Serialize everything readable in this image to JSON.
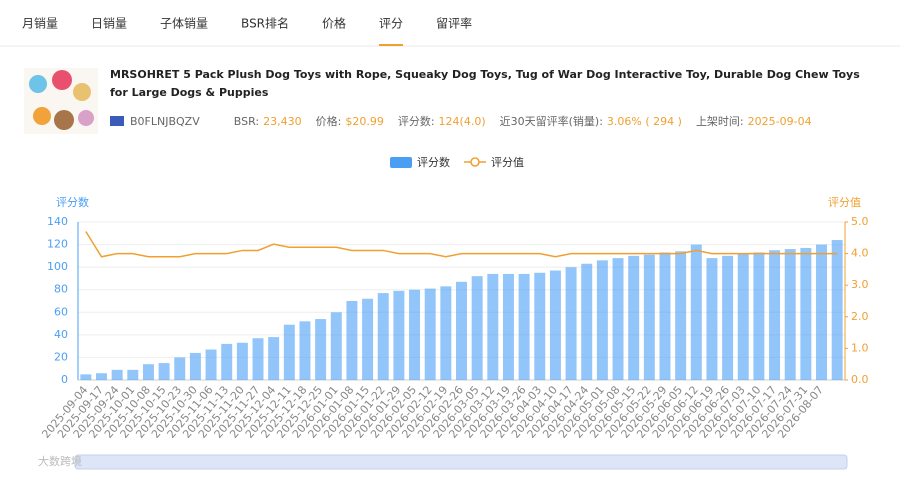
{
  "tabs": [
    "月销量",
    "日销量",
    "子体销量",
    "BSR排名",
    "价格",
    "评分",
    "留评率"
  ],
  "active_tab": 5,
  "product": {
    "title": "MRSOHRET 5 Pack Plush Dog Toys with Rope, Squeaky Dog Toys, Tug of War Dog Interactive Toy, Durable Dog Chew Toys for Large Dogs & Puppies",
    "asin": "B0FLNJBQZV",
    "stats": [
      {
        "label": "BSR:",
        "value": "23,430"
      },
      {
        "label": "价格:",
        "value": "$20.99"
      },
      {
        "label": "评分数:",
        "value": "124(4.0)"
      },
      {
        "label": "近30天留评率(销量):",
        "value": "3.06% ( 294 )"
      },
      {
        "label": "上架时间:",
        "value": "2025-09-04"
      }
    ]
  },
  "watermark": "大数跨境",
  "chart_data": {
    "type": "combo",
    "y_label": "评分数",
    "y2_label": "评分值",
    "categories": [
      "2025-09-04",
      "2025-09-17",
      "2025-09-24",
      "2025-10-01",
      "2025-10-08",
      "2025-10-15",
      "2025-10-23",
      "2025-10-30",
      "2025-11-06",
      "2025-11-13",
      "2025-11-20",
      "2025-11-27",
      "2025-12-04",
      "2025-12-11",
      "2025-12-18",
      "2025-12-25",
      "2026-01-01",
      "2026-01-08",
      "2026-01-15",
      "2026-01-22",
      "2026-01-29",
      "2026-02-05",
      "2026-02-12",
      "2026-02-19",
      "2026-02-26",
      "2026-03-05",
      "2026-03-12",
      "2026-03-19",
      "2026-03-26",
      "2026-04-03",
      "2026-04-10",
      "2026-04-17",
      "2026-04-24",
      "2026-05-01",
      "2026-05-08",
      "2026-05-15",
      "2026-05-22",
      "2026-05-29",
      "2026-06-05",
      "2026-06-12",
      "2026-06-19",
      "2026-06-26",
      "2026-07-03",
      "2026-07-10",
      "2026-07-17",
      "2026-07-24",
      "2026-07-31",
      "2026-08-07",
      null
    ],
    "series": [
      {
        "name": "评分数",
        "color": "#4a9ff5",
        "values": [
          5,
          6,
          9,
          9,
          14,
          15,
          20,
          24,
          27,
          32,
          33,
          37,
          38,
          49,
          52,
          54,
          60,
          70,
          72,
          77,
          79,
          80,
          81,
          83,
          87,
          92,
          94,
          94,
          94,
          95,
          97,
          100,
          103,
          106,
          108,
          110,
          111,
          113,
          114,
          120,
          108,
          110,
          112,
          113,
          115,
          116,
          117,
          120,
          124
        ]
      },
      {
        "name": "评分值",
        "color": "#f0a030",
        "axis": "y2",
        "values": [
          4.7,
          3.9,
          4.0,
          4.0,
          3.9,
          3.9,
          3.9,
          4.0,
          4.0,
          4.0,
          4.1,
          4.1,
          4.3,
          4.2,
          4.2,
          4.2,
          4.2,
          4.1,
          4.1,
          4.1,
          4.0,
          4.0,
          4.0,
          3.9,
          4.0,
          4.0,
          4.0,
          4.0,
          4.0,
          4.0,
          3.9,
          4.0,
          4.0,
          4.0,
          4.0,
          4.0,
          4.0,
          4.0,
          4.0,
          4.1,
          4.0,
          4.0,
          4.0,
          4.0,
          4.0,
          4.0,
          4.0,
          4.0,
          4.0
        ]
      }
    ],
    "ylim": [
      0,
      140
    ],
    "yticks": [
      0,
      20,
      40,
      60,
      80,
      100,
      120,
      140
    ],
    "y2lim": [
      0,
      5
    ],
    "y2ticks": [
      {
        "value": 0,
        "label": "0.0"
      },
      {
        "value": 1,
        "label": "1.0"
      },
      {
        "value": 2,
        "label": "2.0"
      },
      {
        "value": 3,
        "label": "3.0"
      },
      {
        "value": 4,
        "label": "4.0"
      },
      {
        "value": 5,
        "label": "5.0"
      }
    ],
    "grid": true
  }
}
